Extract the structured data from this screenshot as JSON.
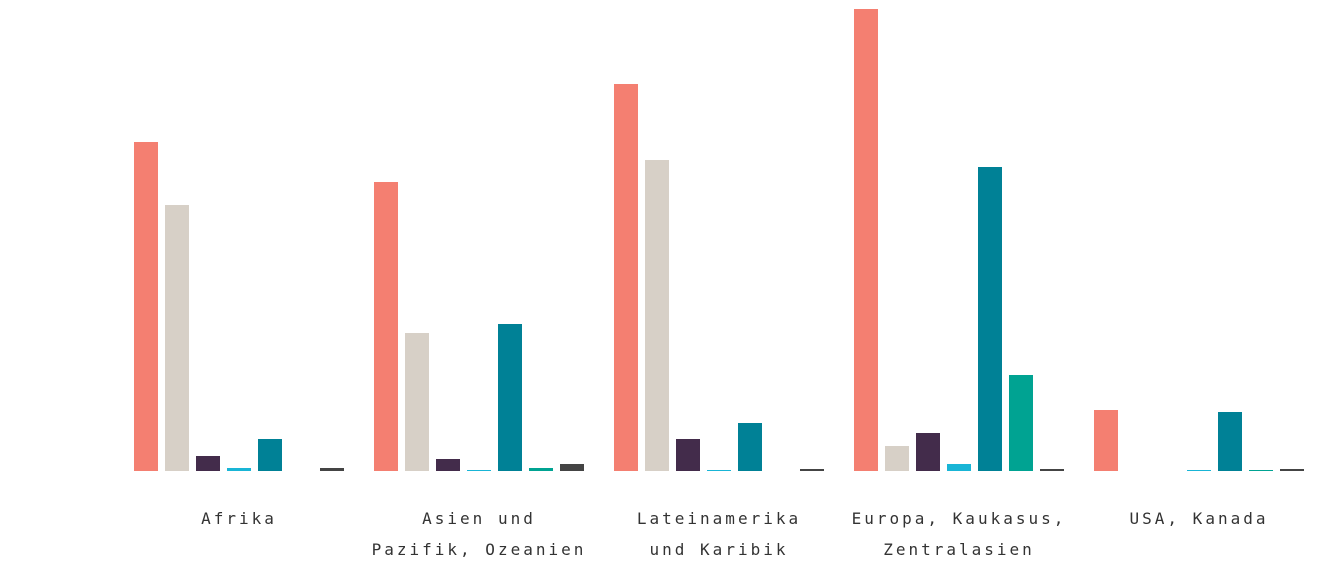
{
  "chart_data": {
    "type": "bar",
    "categories": [
      "Afrika",
      "Asien und\nPazifik, Ozeanien",
      "Lateinamerika\nund Karibik",
      "Europa, Kaukasus,\nZentralasien",
      "USA, Kanada"
    ],
    "series": [
      {
        "color": "#f47f71",
        "values": [
          329,
          289,
          387,
          462,
          61
        ]
      },
      {
        "color": "#d7d0c7",
        "values": [
          266,
          138,
          311,
          25,
          0
        ]
      },
      {
        "color": "#432c4b",
        "values": [
          15,
          12,
          32,
          38,
          0
        ]
      },
      {
        "color": "#19b5d6",
        "values": [
          3,
          1,
          1,
          7,
          1
        ]
      },
      {
        "color": "#008196",
        "values": [
          32,
          147,
          48,
          304,
          59
        ]
      },
      {
        "color": "#00a392",
        "values": [
          0,
          3,
          0,
          96,
          1
        ]
      },
      {
        "color": "#444444",
        "values": [
          3,
          7,
          2,
          2,
          2
        ]
      }
    ],
    "ylim": [
      0,
      470
    ]
  }
}
